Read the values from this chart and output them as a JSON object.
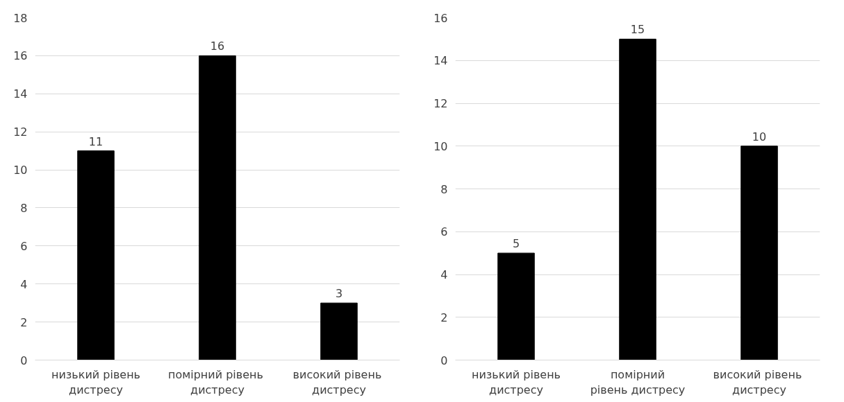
{
  "chart_data": [
    {
      "type": "bar",
      "categories": [
        "низький рівень\nдистресу",
        "помірний  рівень\nдистресу",
        "високий  рівень\nдистресу"
      ],
      "values": [
        11,
        16,
        3
      ],
      "color": "#000000",
      "ylim": [
        0,
        18
      ],
      "yticks": [
        0,
        2,
        4,
        6,
        8,
        10,
        12,
        14,
        16,
        18
      ],
      "grid": "y",
      "data_labels": true
    },
    {
      "type": "bar",
      "categories": [
        "низький рівень\nдистресу",
        "помірний\nрівень дистресу",
        "високий  рівень\nдистресу"
      ],
      "values": [
        5,
        15,
        10
      ],
      "color": "#000000",
      "ylim": [
        0,
        16
      ],
      "yticks": [
        0,
        2,
        4,
        6,
        8,
        10,
        12,
        14,
        16
      ],
      "grid": "y",
      "data_labels": true
    }
  ]
}
